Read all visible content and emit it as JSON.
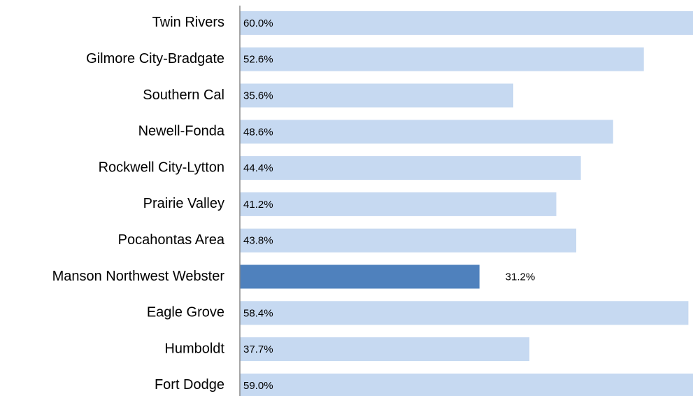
{
  "chart_data": {
    "type": "barh",
    "categories": [
      "Twin Rivers",
      "Gilmore City-Bradgate",
      "Southern Cal",
      "Newell-Fonda",
      "Rockwell City-Lytton",
      "Prairie Valley",
      "Pocahontas Area",
      "Manson Northwest Webster",
      "Eagle Grove",
      "Humboldt",
      "Fort Dodge"
    ],
    "values": [
      60.0,
      52.6,
      35.6,
      48.6,
      44.4,
      41.2,
      43.8,
      31.2,
      58.4,
      37.7,
      59.0
    ],
    "value_labels": [
      "60.0%",
      "52.6%",
      "35.6%",
      "48.6%",
      "44.4%",
      "41.2%",
      "43.8%",
      "31.2%",
      "58.4%",
      "37.7%",
      "59.0%"
    ],
    "colors": [
      "#c6d9f1",
      "#c6d9f1",
      "#c6d9f1",
      "#c6d9f1",
      "#c6d9f1",
      "#c6d9f1",
      "#c6d9f1",
      "#4f81bd",
      "#c6d9f1",
      "#c6d9f1",
      "#c6d9f1"
    ],
    "xlim": [
      0,
      59
    ]
  }
}
